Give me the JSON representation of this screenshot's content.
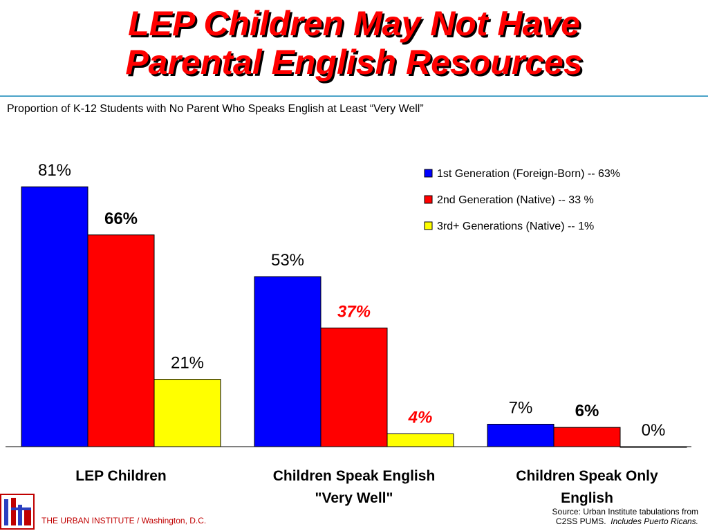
{
  "title_line1": "LEP Children May Not Have",
  "title_line2": "Parental English Resources",
  "subtitle": "Proportion of K-12 Students with No Parent Who Speaks English at Least “Very Well”",
  "footer": {
    "org": "THE URBAN INSTITUTE / Washington, D.C.",
    "source_line1": "Source:  Urban Institute tabulations from",
    "source_line2a": "C2SS PUMS.",
    "source_line2b": "Includes Puerto Ricans."
  },
  "colors": {
    "blue": "#0000ff",
    "red": "#ff0000",
    "yellow": "#ffff00",
    "title": "#ff0000"
  },
  "chart_data": {
    "type": "bar",
    "categories": [
      [
        "LEP Children"
      ],
      [
        "Children Speak English",
        "\"Very Well\""
      ],
      [
        "Children Speak Only",
        "English"
      ]
    ],
    "series": [
      {
        "name": "1st Generation (Foreign-Born) -- 63%",
        "color": "#0000ff",
        "values": [
          81,
          53,
          7
        ],
        "labels": [
          "81%",
          "53%",
          "7%"
        ],
        "label_style": "normal"
      },
      {
        "name": "2nd Generation (Native) -- 33 %",
        "color": "#ff0000",
        "values": [
          66,
          37,
          6
        ],
        "labels": [
          "66%",
          "37%",
          "6%"
        ],
        "label_style": "emph"
      },
      {
        "name": "3rd+ Generations (Native) -- 1%",
        "color": "#ffff00",
        "values": [
          21,
          4,
          0
        ],
        "labels": [
          "21%",
          "4%",
          "0%"
        ],
        "label_style": "normal"
      }
    ],
    "label_colors": [
      [
        "#000000",
        "#000000",
        "#000000"
      ],
      [
        "#000000",
        "#ff0000",
        "#000000"
      ],
      [
        "#000000",
        "#ff0000",
        "#000000"
      ]
    ],
    "label_bold": [
      [
        false,
        false,
        false
      ],
      [
        true,
        true,
        true
      ],
      [
        false,
        true,
        false
      ]
    ],
    "label_italic": [
      [
        false,
        false,
        false
      ],
      [
        false,
        true,
        false
      ],
      [
        false,
        true,
        false
      ]
    ],
    "ylim": [
      0,
      100
    ],
    "legend": "top-right",
    "grid": false
  }
}
